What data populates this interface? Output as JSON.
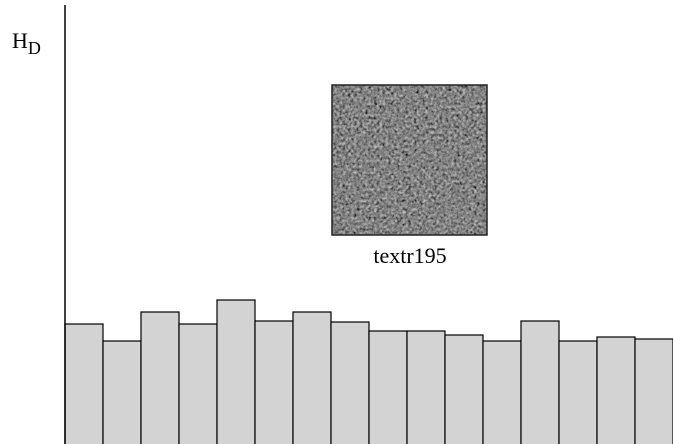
{
  "chart_data": {
    "type": "bar",
    "y_label": {
      "main": "H",
      "sub": "D"
    },
    "annotation": "textr195",
    "categories": [
      null,
      null,
      null,
      null,
      null,
      null,
      null,
      null,
      null,
      null,
      null,
      null,
      null,
      null,
      null,
      null
    ],
    "values": [
      120,
      103,
      132,
      120,
      144,
      123,
      132,
      122,
      113,
      113,
      109,
      103,
      123,
      103,
      107,
      105
    ],
    "color": "#d3d3d3",
    "ylim": [
      0,
      439
    ]
  }
}
